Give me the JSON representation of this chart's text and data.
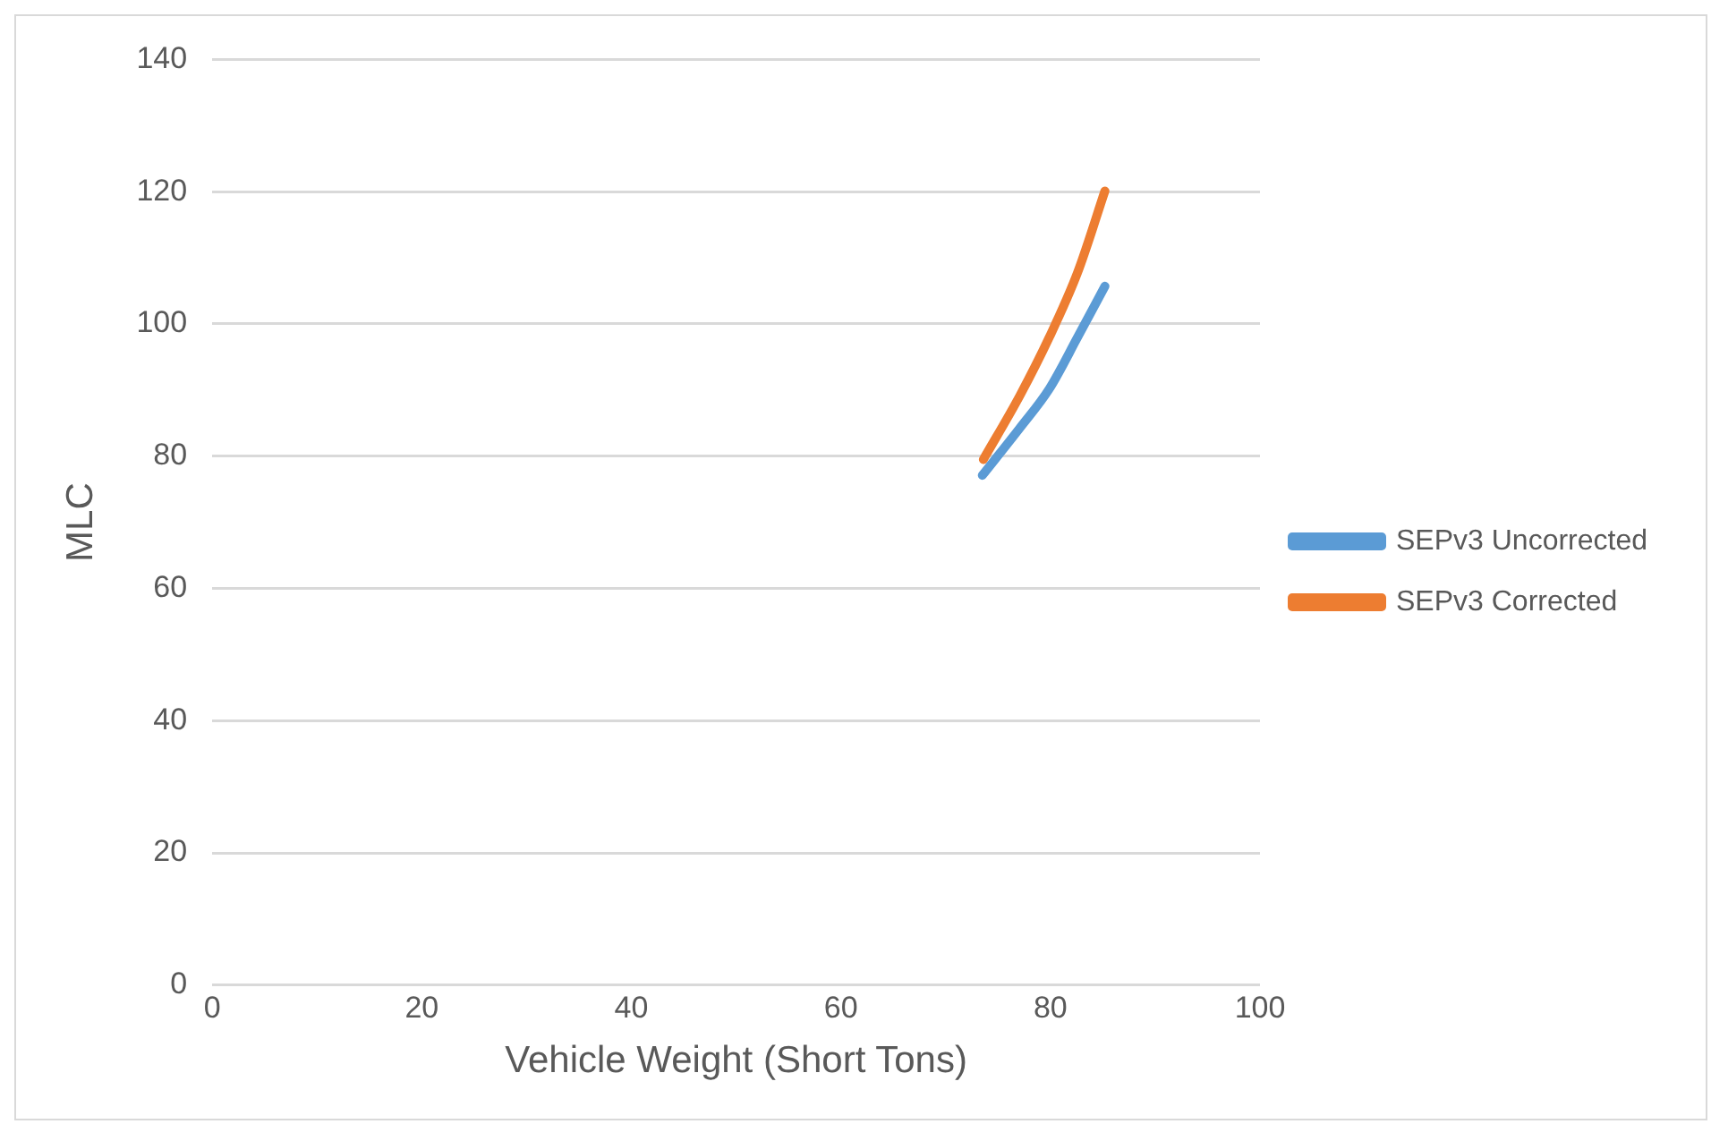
{
  "chart_data": {
    "type": "line",
    "xlabel": "Vehicle Weight (Short Tons)",
    "ylabel": "MLC",
    "xlim": [
      0,
      100
    ],
    "xticks": [
      0,
      20,
      40,
      60,
      80,
      100
    ],
    "ylim": [
      0,
      140
    ],
    "yticks": [
      0,
      20,
      40,
      60,
      80,
      100,
      120,
      140
    ],
    "grid": "y",
    "legend": "right",
    "marker": "none",
    "line_style": "solid",
    "series": [
      {
        "name": "SEPv3 Uncorrected",
        "color": "#5b9bd5",
        "x": [
          73.5,
          77.1,
          79.9,
          82.6,
          85.2
        ],
        "values": [
          77.1,
          84.3,
          90.2,
          98.0,
          105.7
        ]
      },
      {
        "name": "SEPv3 Corrected",
        "color": "#ed7d31",
        "x": [
          73.6,
          77.1,
          79.9,
          82.6,
          85.2
        ],
        "values": [
          79.5,
          89.2,
          98.0,
          107.8,
          120.1
        ]
      }
    ]
  }
}
